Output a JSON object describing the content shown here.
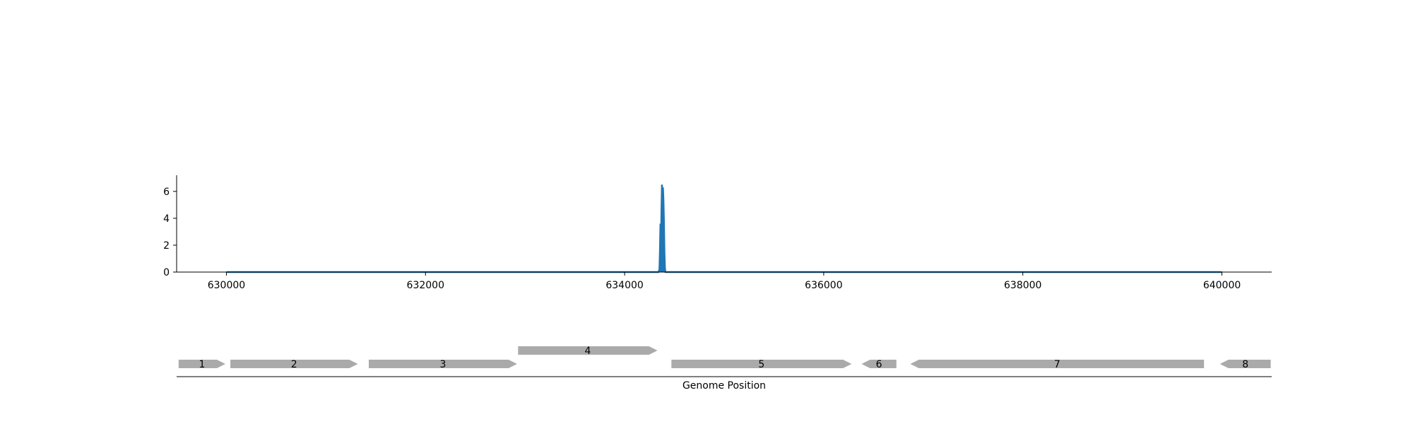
{
  "chart_data": {
    "type": "area",
    "xlim": [
      629500,
      640500
    ],
    "ylim": [
      0,
      7.2
    ],
    "x_ticks": [
      630000,
      632000,
      634000,
      636000,
      638000,
      640000
    ],
    "y_ticks": [
      0,
      2,
      4,
      6
    ],
    "x_tick_labels": [
      "630000",
      "632000",
      "634000",
      "636000",
      "638000",
      "640000"
    ],
    "y_tick_labels": [
      "0",
      "2",
      "4",
      "6"
    ],
    "series": [
      {
        "color": "#1f77b4",
        "x": [
          630000,
          634340,
          634350,
          634355,
          634360,
          634365,
          634370,
          634375,
          634380,
          634385,
          634390,
          634395,
          634400,
          634405,
          634410,
          640000
        ],
        "y": [
          0,
          0,
          0.2,
          1.6,
          3.6,
          2.1,
          4.5,
          6.5,
          5.6,
          6.3,
          5.4,
          3.8,
          1.5,
          0.3,
          0,
          0
        ]
      }
    ],
    "xlabel": "Genome Position",
    "genes": [
      {
        "label": "1",
        "start": 629520,
        "end": 629990,
        "strand": "+",
        "row": 0
      },
      {
        "label": "2",
        "start": 630040,
        "end": 631320,
        "strand": "+",
        "row": 0
      },
      {
        "label": "3",
        "start": 631430,
        "end": 632920,
        "strand": "+",
        "row": 0
      },
      {
        "label": "4",
        "start": 632930,
        "end": 634330,
        "strand": "+",
        "row": 1
      },
      {
        "label": "5",
        "start": 634470,
        "end": 636280,
        "strand": "+",
        "row": 0
      },
      {
        "label": "6",
        "start": 636380,
        "end": 636730,
        "strand": "-",
        "row": 0
      },
      {
        "label": "7",
        "start": 636870,
        "end": 639820,
        "strand": "-",
        "row": 0
      },
      {
        "label": "8",
        "start": 639980,
        "end": 640490,
        "strand": "-",
        "row": 0
      }
    ],
    "gene_color": "#aaaaaa"
  }
}
